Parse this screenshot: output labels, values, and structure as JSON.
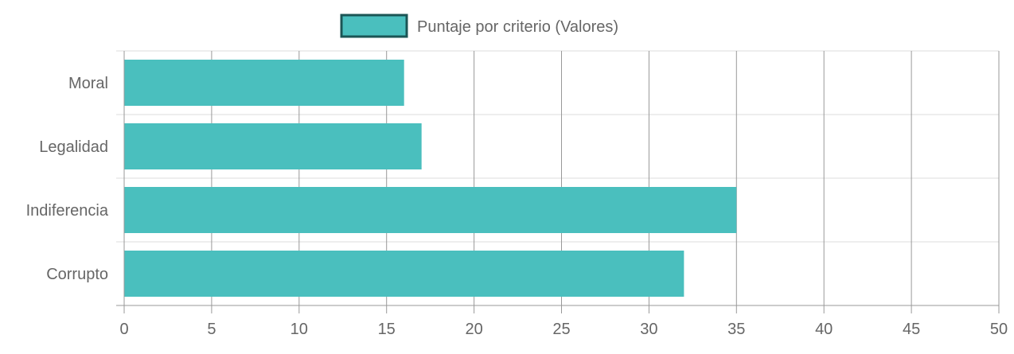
{
  "chart_data": {
    "type": "bar",
    "orientation": "horizontal",
    "categories": [
      "Moral",
      "Legalidad",
      "Indiferencia",
      "Corrupto"
    ],
    "series": [
      {
        "name": "Puntaje por criterio (Valores)",
        "values": [
          16,
          17,
          35,
          32
        ]
      }
    ],
    "xlim": [
      0,
      50
    ],
    "x_ticks": [
      0,
      5,
      10,
      15,
      20,
      25,
      30,
      35,
      40,
      45,
      50
    ],
    "title": "",
    "xlabel": "",
    "ylabel": "",
    "grid": true,
    "legend_position": "top",
    "colors": {
      "bar_fill": "#4abfbe",
      "legend_border": "#1b5555",
      "grid": "#dcdcdc",
      "axis_major": "#999999",
      "text": "#666666"
    }
  }
}
